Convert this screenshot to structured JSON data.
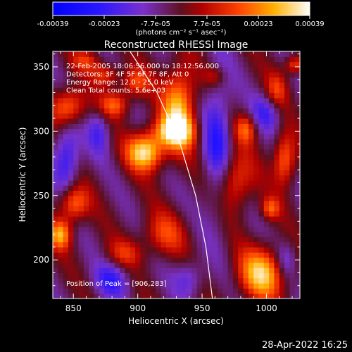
{
  "chart_data": {
    "type": "heatmap",
    "title": "Reconstructed RHESSI Image",
    "xlabel": "Heliocentric X (arcsec)",
    "ylabel": "Heliocentric Y (arcsec)",
    "xlim": [
      834,
      1026
    ],
    "ylim": [
      170,
      362
    ],
    "x_ticks": [
      850,
      900,
      950,
      1000
    ],
    "y_ticks": [
      200,
      250,
      300,
      350
    ],
    "colorbar": {
      "min": -0.00039,
      "max": 0.00039,
      "ticks": [
        "-0.00039",
        "-0.00023",
        "-7.7e-05",
        "7.7e-05",
        "0.00023",
        "0.00039"
      ],
      "unit_label": "(photons cm⁻² s⁻¹ asec⁻²)",
      "colormap": "rainbow-hot"
    },
    "annotations": [
      "22-Feb-2005 18:06:56.000 to 18:12:56.000",
      "Detectors: 3F 4F 5F 6F 7F 8F, Att 0",
      "Energy Range: 12.0 - 25.0 keV",
      "Clean    Total counts: 5.6e+03"
    ],
    "peak_label": "Position of Peak = [906,283]",
    "peak_position": [
      906,
      283
    ],
    "limb": [
      [
        894,
        362
      ],
      [
        915,
        330
      ],
      [
        933,
        290
      ],
      [
        945,
        250
      ],
      [
        953,
        210
      ],
      [
        958,
        170
      ]
    ],
    "sources": [
      {
        "x": 906,
        "y": 284,
        "sx": 10,
        "sy": 10,
        "amp": 0.00039
      },
      {
        "x": 932,
        "y": 318,
        "sx": 9,
        "sy": 22,
        "amp": 0.00034
      },
      {
        "x": 928,
        "y": 300,
        "sx": 12,
        "sy": 8,
        "amp": 0.00028
      },
      {
        "x": 846,
        "y": 319,
        "sx": 9,
        "sy": 10,
        "amp": 0.00027
      },
      {
        "x": 882,
        "y": 321,
        "sx": 8,
        "sy": 7,
        "amp": 0.00022
      },
      {
        "x": 997,
        "y": 190,
        "sx": 13,
        "sy": 14,
        "amp": 0.00034
      },
      {
        "x": 850,
        "y": 244,
        "sx": 8,
        "sy": 10,
        "amp": 0.00026
      },
      {
        "x": 840,
        "y": 220,
        "sx": 6,
        "sy": 8,
        "amp": 0.00029
      },
      {
        "x": 1014,
        "y": 278,
        "sx": 6,
        "sy": 14,
        "amp": 0.00026
      },
      {
        "x": 1003,
        "y": 240,
        "sx": 5,
        "sy": 6,
        "amp": 0.0002
      },
      {
        "x": 975,
        "y": 262,
        "sx": 10,
        "sy": 16,
        "amp": 0.00022
      },
      {
        "x": 984,
        "y": 302,
        "sx": 6,
        "sy": 8,
        "amp": 0.00021
      },
      {
        "x": 1008,
        "y": 332,
        "sx": 6,
        "sy": 10,
        "amp": 0.00016
      },
      {
        "x": 898,
        "y": 338,
        "sx": 8,
        "sy": 8,
        "amp": 0.00019
      },
      {
        "x": 875,
        "y": 344,
        "sx": 7,
        "sy": 6,
        "amp": 0.00018
      },
      {
        "x": 860,
        "y": 355,
        "sx": 8,
        "sy": 6,
        "amp": 0.00015
      },
      {
        "x": 920,
        "y": 220,
        "sx": 12,
        "sy": 12,
        "amp": 0.00017
      },
      {
        "x": 890,
        "y": 205,
        "sx": 10,
        "sy": 8,
        "amp": 0.00014
      },
      {
        "x": 960,
        "y": 343,
        "sx": 6,
        "sy": 6,
        "amp": 0.00013
      },
      {
        "x": 1022,
        "y": 352,
        "sx": 5,
        "sy": 5,
        "amp": 0.00022
      },
      {
        "x": 845,
        "y": 280,
        "sx": 7,
        "sy": 18,
        "amp": -0.00022
      },
      {
        "x": 962,
        "y": 292,
        "sx": 8,
        "sy": 40,
        "amp": -0.0002
      },
      {
        "x": 880,
        "y": 185,
        "sx": 10,
        "sy": 10,
        "amp": -0.00017
      },
      {
        "x": 1000,
        "y": 315,
        "sx": 8,
        "sy": 10,
        "amp": -0.00016
      },
      {
        "x": 940,
        "y": 186,
        "sx": 8,
        "sy": 10,
        "amp": -0.00014
      },
      {
        "x": 870,
        "y": 300,
        "sx": 6,
        "sy": 12,
        "amp": -0.00015
      },
      {
        "x": 1015,
        "y": 200,
        "sx": 6,
        "sy": 10,
        "amp": -0.00014
      }
    ]
  },
  "footer": {
    "timestamp": "28-Apr-2022 16:25"
  }
}
